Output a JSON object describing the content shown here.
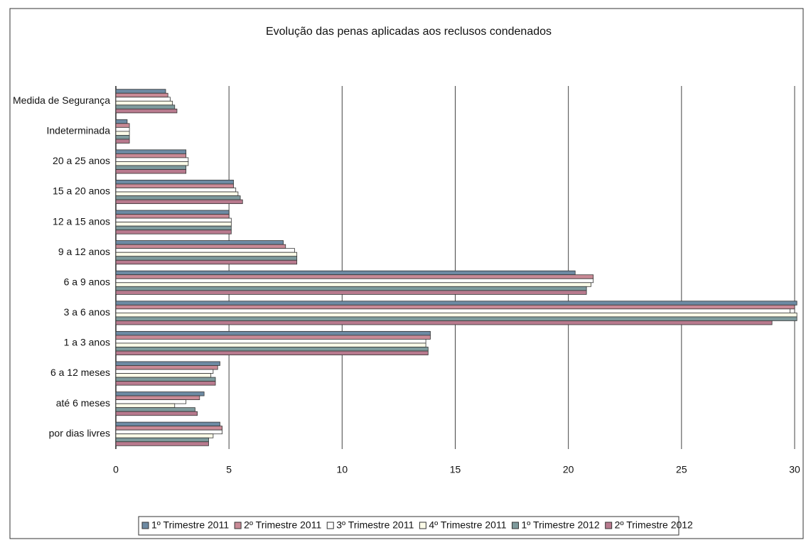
{
  "chart_data": {
    "type": "bar",
    "orientation": "horizontal",
    "title": "Evolução das penas aplicadas aos reclusos condenados",
    "categories": [
      "por dias livres",
      "até 6 meses",
      "6 a 12 meses",
      "1 a 3 anos",
      "3 a 6 anos",
      "6 a 9 anos",
      "9 a 12 anos",
      "12 a 15 anos",
      "15 a 20 anos",
      "20 a 25 anos",
      "Indeterminada",
      "Medida de Segurança"
    ],
    "series": [
      {
        "name": "1º Trimestre 2011",
        "color": "#6d8aa3",
        "values": [
          4.6,
          3.9,
          4.6,
          13.9,
          30.1,
          20.3,
          7.4,
          5.0,
          5.2,
          3.1,
          0.5,
          2.2
        ]
      },
      {
        "name": "2º Trimestre 2011",
        "color": "#c98a96",
        "values": [
          4.7,
          3.7,
          4.5,
          13.9,
          30.0,
          21.1,
          7.5,
          5.0,
          5.2,
          3.1,
          0.6,
          2.3
        ]
      },
      {
        "name": "3º Trimestre 2011",
        "color": "#ffffff",
        "values": [
          4.7,
          3.1,
          4.3,
          13.7,
          29.8,
          21.1,
          7.9,
          5.1,
          5.3,
          3.2,
          0.6,
          2.4
        ]
      },
      {
        "name": "4º Trimestre 2011",
        "color": "#fbfbe8",
        "values": [
          4.3,
          2.6,
          4.2,
          13.7,
          30.1,
          21.0,
          8.0,
          5.1,
          5.4,
          3.2,
          0.6,
          2.5
        ]
      },
      {
        "name": "1º Trimestre 2012",
        "color": "#7e9a9c",
        "values": [
          4.1,
          3.5,
          4.4,
          13.8,
          30.1,
          20.8,
          8.0,
          5.1,
          5.5,
          3.1,
          0.6,
          2.6
        ]
      },
      {
        "name": "2º Trimestre 2012",
        "color": "#b87a8e",
        "values": [
          4.1,
          3.6,
          4.4,
          13.8,
          29.0,
          20.8,
          8.0,
          5.1,
          5.6,
          3.1,
          0.6,
          2.7
        ]
      }
    ],
    "xlim": [
      0,
      30
    ],
    "xticks": [
      0,
      5,
      10,
      15,
      20,
      25,
      30
    ],
    "grid": true
  }
}
